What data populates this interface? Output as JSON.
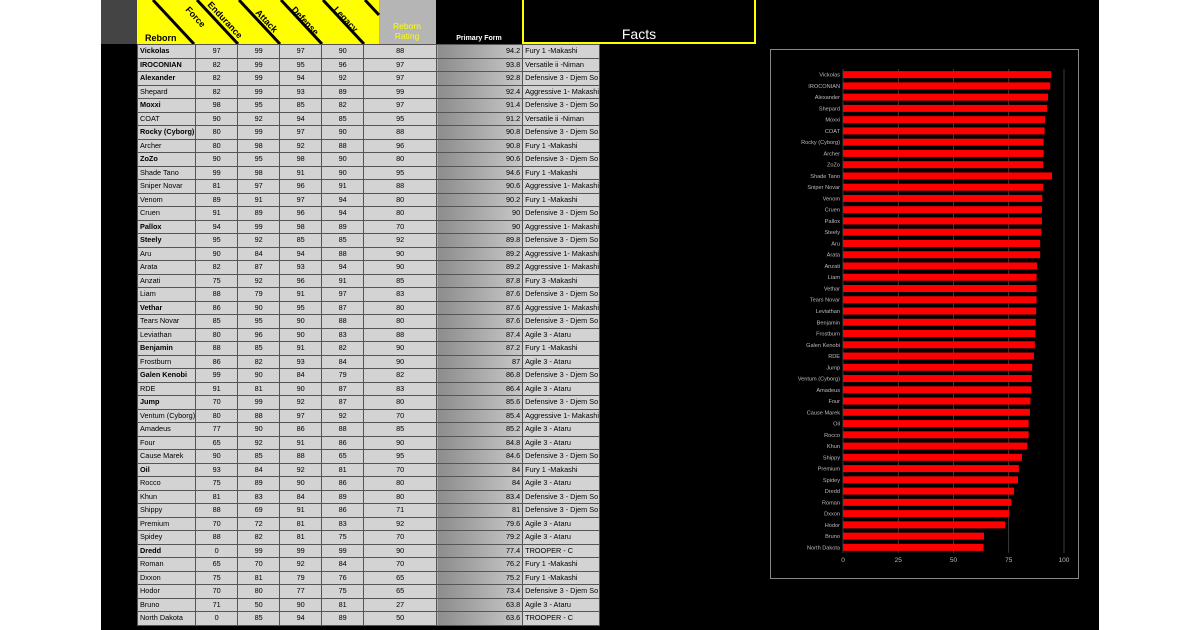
{
  "headers": {
    "reborn": "Reborn",
    "force": "Force",
    "endurance": "Endurance",
    "attack": "Attack",
    "defense": "Defense",
    "legacy": "Legacy",
    "rating_line1": "Reborn",
    "rating_line2": "Rating",
    "primary_form": "Primary Form",
    "facts": "Facts"
  },
  "colors": {
    "accent": "#ffff00",
    "bar": "#ff0000",
    "cell": "#d3d3d3",
    "background": "#000000"
  },
  "rows": [
    {
      "name": "Vickolas",
      "bold": true,
      "force": 97,
      "endurance": 99,
      "attack": 97,
      "defense": 90,
      "legacy": 88,
      "rating": "94.2",
      "form": "Fury 1 -Makashi"
    },
    {
      "name": "IROCONIAN",
      "bold": true,
      "force": 82,
      "endurance": 99,
      "attack": 95,
      "defense": 96,
      "legacy": 97,
      "rating": "93.8",
      "form": "Versatile ii -Niman"
    },
    {
      "name": "Alexander",
      "bold": true,
      "force": 82,
      "endurance": 99,
      "attack": 94,
      "defense": 92,
      "legacy": 97,
      "rating": "92.8",
      "form": "Defensive 3 - Djem So"
    },
    {
      "name": "Shepard",
      "bold": false,
      "force": 82,
      "endurance": 99,
      "attack": 93,
      "defense": 89,
      "legacy": 99,
      "rating": "92.4",
      "form": "Aggressive 1- Makashi"
    },
    {
      "name": "Moxxi",
      "bold": true,
      "force": 98,
      "endurance": 95,
      "attack": 85,
      "defense": 82,
      "legacy": 97,
      "rating": "91.4",
      "form": "Defensive 3 - Djem So"
    },
    {
      "name": "COAT",
      "bold": false,
      "force": 90,
      "endurance": 92,
      "attack": 94,
      "defense": 85,
      "legacy": 95,
      "rating": "91.2",
      "form": "Versatile ii -Niman"
    },
    {
      "name": "Rocky (Cyborg)",
      "bold": true,
      "force": 80,
      "endurance": 99,
      "attack": 97,
      "defense": 90,
      "legacy": 88,
      "rating": "90.8",
      "form": "Defensive 3 - Djem So"
    },
    {
      "name": "Archer",
      "bold": false,
      "force": 80,
      "endurance": 98,
      "attack": 92,
      "defense": 88,
      "legacy": 96,
      "rating": "90.8",
      "form": "Fury 1 -Makashi"
    },
    {
      "name": "ZoZo",
      "bold": true,
      "force": 90,
      "endurance": 95,
      "attack": 98,
      "defense": 90,
      "legacy": 80,
      "rating": "90.6",
      "form": "Defensive 3 - Djem So"
    },
    {
      "name": "Shade Tano",
      "bold": false,
      "force": 99,
      "endurance": 98,
      "attack": 91,
      "defense": 90,
      "legacy": 95,
      "rating": "94.6",
      "form": "Fury 1 -Makashi"
    },
    {
      "name": "Sniper Novar",
      "bold": false,
      "force": 81,
      "endurance": 97,
      "attack": 96,
      "defense": 91,
      "legacy": 88,
      "rating": "90.6",
      "form": "Aggressive 1- Makashi"
    },
    {
      "name": "Venom",
      "bold": false,
      "force": 89,
      "endurance": 91,
      "attack": 97,
      "defense": 94,
      "legacy": 80,
      "rating": "90.2",
      "form": "Fury 1 -Makashi"
    },
    {
      "name": "Cruen",
      "bold": false,
      "force": 91,
      "endurance": 89,
      "attack": 96,
      "defense": 94,
      "legacy": 80,
      "rating": "90",
      "form": "Defensive 3 - Djem So"
    },
    {
      "name": "Pallox",
      "bold": true,
      "force": 94,
      "endurance": 99,
      "attack": 98,
      "defense": 89,
      "legacy": 70,
      "rating": "90",
      "form": "Aggressive 1- Makashi"
    },
    {
      "name": "Steely",
      "bold": true,
      "force": 95,
      "endurance": 92,
      "attack": 85,
      "defense": 85,
      "legacy": 92,
      "rating": "89.8",
      "form": "Defensive 3 - Djem So"
    },
    {
      "name": "Aru",
      "bold": false,
      "force": 90,
      "endurance": 84,
      "attack": 94,
      "defense": 88,
      "legacy": 90,
      "rating": "89.2",
      "form": "Aggressive 1- Makashi"
    },
    {
      "name": "Arata",
      "bold": false,
      "force": 82,
      "endurance": 87,
      "attack": 93,
      "defense": 94,
      "legacy": 90,
      "rating": "89.2",
      "form": "Aggressive 1- Makashi"
    },
    {
      "name": "Anzati",
      "bold": false,
      "force": 75,
      "endurance": 92,
      "attack": 96,
      "defense": 91,
      "legacy": 85,
      "rating": "87.8",
      "form": "Fury 3 -Makashi"
    },
    {
      "name": "Liam",
      "bold": false,
      "force": 88,
      "endurance": 79,
      "attack": 91,
      "defense": 97,
      "legacy": 83,
      "rating": "87.6",
      "form": "Defensive 3 - Djem So"
    },
    {
      "name": "Vethar",
      "bold": true,
      "force": 86,
      "endurance": 90,
      "attack": 95,
      "defense": 87,
      "legacy": 80,
      "rating": "87.6",
      "form": "Aggressive 1- Makashi"
    },
    {
      "name": "Tears Novar",
      "bold": false,
      "force": 85,
      "endurance": 95,
      "attack": 90,
      "defense": 88,
      "legacy": 80,
      "rating": "87.6",
      "form": "Defensive 3 - Djem So"
    },
    {
      "name": "Leviathan",
      "bold": false,
      "force": 80,
      "endurance": 96,
      "attack": 90,
      "defense": 83,
      "legacy": 88,
      "rating": "87.4",
      "form": "Agile 3 - Ataru"
    },
    {
      "name": "Benjamin",
      "bold": true,
      "force": 88,
      "endurance": 85,
      "attack": 91,
      "defense": 82,
      "legacy": 90,
      "rating": "87.2",
      "form": "Fury 1 -Makashi"
    },
    {
      "name": "Frostburn",
      "bold": false,
      "force": 86,
      "endurance": 82,
      "attack": 93,
      "defense": 84,
      "legacy": 90,
      "rating": "87",
      "form": "Agile 3 - Ataru"
    },
    {
      "name": "Galen Kenobi",
      "bold": true,
      "force": 99,
      "endurance": 90,
      "attack": 84,
      "defense": 79,
      "legacy": 82,
      "rating": "86.8",
      "form": "Defensive 3 - Djem So"
    },
    {
      "name": "RDE",
      "bold": false,
      "force": 91,
      "endurance": 81,
      "attack": 90,
      "defense": 87,
      "legacy": 83,
      "rating": "86.4",
      "form": "Agile 3 - Ataru"
    },
    {
      "name": "Jump",
      "bold": true,
      "force": 70,
      "endurance": 99,
      "attack": 92,
      "defense": 87,
      "legacy": 80,
      "rating": "85.6",
      "form": "Defensive 3 - Djem So"
    },
    {
      "name": "Ventum (Cyborg)",
      "bold": false,
      "force": 80,
      "endurance": 88,
      "attack": 97,
      "defense": 92,
      "legacy": 70,
      "rating": "85.4",
      "form": "Aggressive 1- Makashi"
    },
    {
      "name": "Amadeus",
      "bold": false,
      "force": 77,
      "endurance": 90,
      "attack": 86,
      "defense": 88,
      "legacy": 85,
      "rating": "85.2",
      "form": "Agile 3 - Ataru"
    },
    {
      "name": "Four",
      "bold": false,
      "force": 65,
      "endurance": 92,
      "attack": 91,
      "defense": 86,
      "legacy": 90,
      "rating": "84.8",
      "form": "Agile 3 - Ataru"
    },
    {
      "name": "Cause Marek",
      "bold": false,
      "force": 90,
      "endurance": 85,
      "attack": 88,
      "defense": 65,
      "legacy": 95,
      "rating": "84.6",
      "form": "Defensive 3 - Djem So"
    },
    {
      "name": "Oil",
      "bold": true,
      "force": 93,
      "endurance": 84,
      "attack": 92,
      "defense": 81,
      "legacy": 70,
      "rating": "84",
      "form": "Fury 1 -Makashi"
    },
    {
      "name": "Rocco",
      "bold": false,
      "force": 75,
      "endurance": 89,
      "attack": 90,
      "defense": 86,
      "legacy": 80,
      "rating": "84",
      "form": "Agile 3 - Ataru"
    },
    {
      "name": "Khun",
      "bold": false,
      "force": 81,
      "endurance": 83,
      "attack": 84,
      "defense": 89,
      "legacy": 80,
      "rating": "83.4",
      "form": "Defensive 3 - Djem So"
    },
    {
      "name": "Shippy",
      "bold": false,
      "force": 88,
      "endurance": 69,
      "attack": 91,
      "defense": 86,
      "legacy": 71,
      "rating": "81",
      "form": "Defensive 3 - Djem So"
    },
    {
      "name": "Premium",
      "bold": false,
      "force": 70,
      "endurance": 72,
      "attack": 81,
      "defense": 83,
      "legacy": 92,
      "rating": "79.6",
      "form": "Agile 3 - Ataru"
    },
    {
      "name": "Spidey",
      "bold": false,
      "force": 88,
      "endurance": 82,
      "attack": 81,
      "defense": 75,
      "legacy": 70,
      "rating": "79.2",
      "form": "Agile 3 - Ataru"
    },
    {
      "name": "Dredd",
      "bold": true,
      "force": 0,
      "endurance": 99,
      "attack": 99,
      "defense": 99,
      "legacy": 90,
      "rating": "77.4",
      "form": "TROOPER - C"
    },
    {
      "name": "Roman",
      "bold": false,
      "force": 65,
      "endurance": 70,
      "attack": 92,
      "defense": 84,
      "legacy": 70,
      "rating": "76.2",
      "form": "Fury 1 -Makashi"
    },
    {
      "name": "Dxxon",
      "bold": false,
      "force": 75,
      "endurance": 81,
      "attack": 79,
      "defense": 76,
      "legacy": 65,
      "rating": "75.2",
      "form": "Fury 1 -Makashi"
    },
    {
      "name": "Hodor",
      "bold": false,
      "force": 70,
      "endurance": 80,
      "attack": 77,
      "defense": 75,
      "legacy": 65,
      "rating": "73.4",
      "form": "Defensive 3 - Djem So"
    },
    {
      "name": "Bruno",
      "bold": false,
      "force": 71,
      "endurance": 50,
      "attack": 90,
      "defense": 81,
      "legacy": 27,
      "rating": "63.8",
      "form": "Agile 3 - Ataru"
    },
    {
      "name": "North Dakota",
      "bold": false,
      "force": 0,
      "endurance": 85,
      "attack": 94,
      "defense": 89,
      "legacy": 50,
      "rating": "63.6",
      "form": "TROOPER - C"
    }
  ],
  "chart_data": {
    "type": "bar",
    "orientation": "horizontal",
    "categories": [
      "Vickolas",
      "IROCONIAN",
      "Alexander",
      "Shepard",
      "Moxxi",
      "COAT",
      "Rocky (Cyborg)",
      "Archer",
      "ZoZo",
      "Shade Tano",
      "Sniper Novar",
      "Venom",
      "Cruen",
      "Pallox",
      "Steely",
      "Aru",
      "Arata",
      "Anzati",
      "Liam",
      "Vethar",
      "Tears Novar",
      "Leviathan",
      "Benjamin",
      "Frostburn",
      "Galen Kenobi",
      "RDE",
      "Jump",
      "Ventum (Cyborg)",
      "Amadeus",
      "Four",
      "Cause Marek",
      "Oil",
      "Rocco",
      "Khun",
      "Shippy",
      "Premium",
      "Spidey",
      "Dredd",
      "Roman",
      "Dxxon",
      "Hodor",
      "Bruno",
      "North Dakota"
    ],
    "values": [
      94.2,
      93.8,
      92.8,
      92.4,
      91.4,
      91.2,
      90.8,
      90.8,
      90.6,
      94.6,
      90.6,
      90.2,
      90,
      90,
      89.8,
      89.2,
      89.2,
      87.8,
      87.6,
      87.6,
      87.6,
      87.4,
      87.2,
      87,
      86.8,
      86.4,
      85.6,
      85.4,
      85.2,
      84.8,
      84.6,
      84,
      84,
      83.4,
      81,
      79.6,
      79.2,
      77.4,
      76.2,
      75.2,
      73.4,
      63.8,
      63.6
    ],
    "xlim": [
      0,
      100
    ],
    "xticks": [
      "0",
      "25",
      "50",
      "75",
      "100"
    ],
    "grid": true,
    "bar_color": "#ff0000"
  }
}
